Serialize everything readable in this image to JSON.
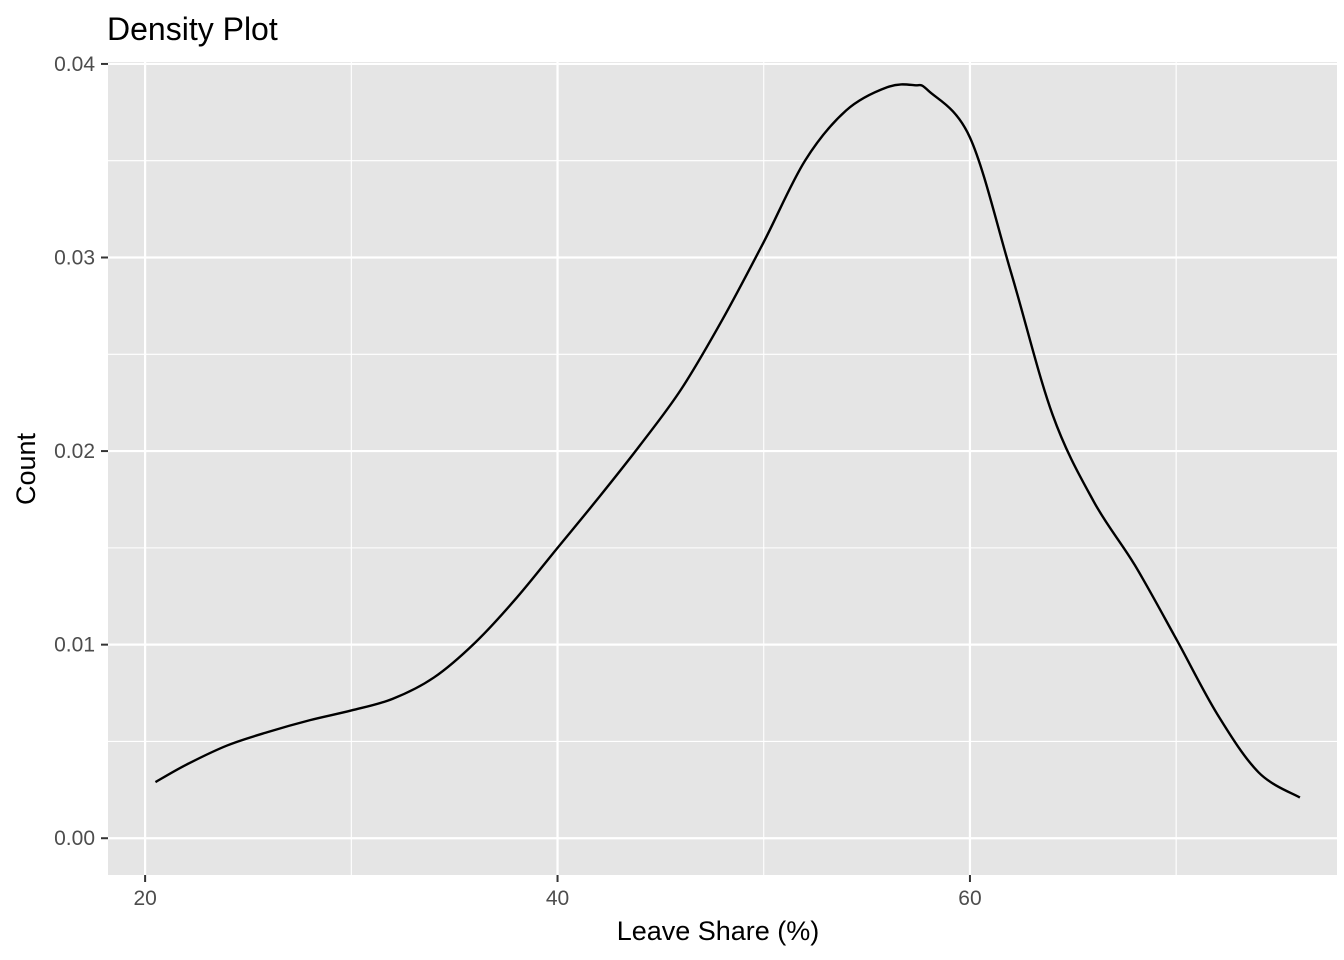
{
  "chart_data": {
    "type": "area",
    "title": "Density Plot",
    "xlabel": "Leave Share (%)",
    "ylabel": "Count",
    "xlim": [
      18.2,
      77.8
    ],
    "ylim": [
      -0.0019,
      0.0401
    ],
    "x_ticks": [
      20,
      40,
      60
    ],
    "x_tick_labels": [
      "20",
      "40",
      "60"
    ],
    "y_ticks": [
      0.0,
      0.01,
      0.02,
      0.03,
      0.04
    ],
    "y_tick_labels": [
      "0.00",
      "0.01",
      "0.02",
      "0.03",
      "0.04"
    ],
    "grid": true,
    "legend": "none",
    "series": [
      {
        "x": [
          20.5,
          22,
          24,
          26,
          28,
          30,
          32,
          34,
          36,
          38,
          40,
          42,
          44,
          46,
          48,
          50,
          52,
          54,
          56,
          57.3,
          58,
          60,
          62,
          64,
          66,
          68,
          70,
          72,
          74,
          76
        ],
        "values": [
          0.0029,
          0.0038,
          0.0048,
          0.0055,
          0.0061,
          0.0066,
          0.0072,
          0.0083,
          0.0101,
          0.0124,
          0.015,
          0.0176,
          0.0203,
          0.0232,
          0.0268,
          0.0308,
          0.035,
          0.0376,
          0.0388,
          0.0389,
          0.0386,
          0.0362,
          0.0292,
          0.0219,
          0.0174,
          0.0141,
          0.0103,
          0.0064,
          0.0034,
          0.0021
        ]
      }
    ],
    "colors": {
      "panel": "#E5E5E5",
      "grid": "#FFFFFF",
      "line": "#000000",
      "tick": "#333333",
      "tick_text": "#4D4D4D"
    }
  }
}
